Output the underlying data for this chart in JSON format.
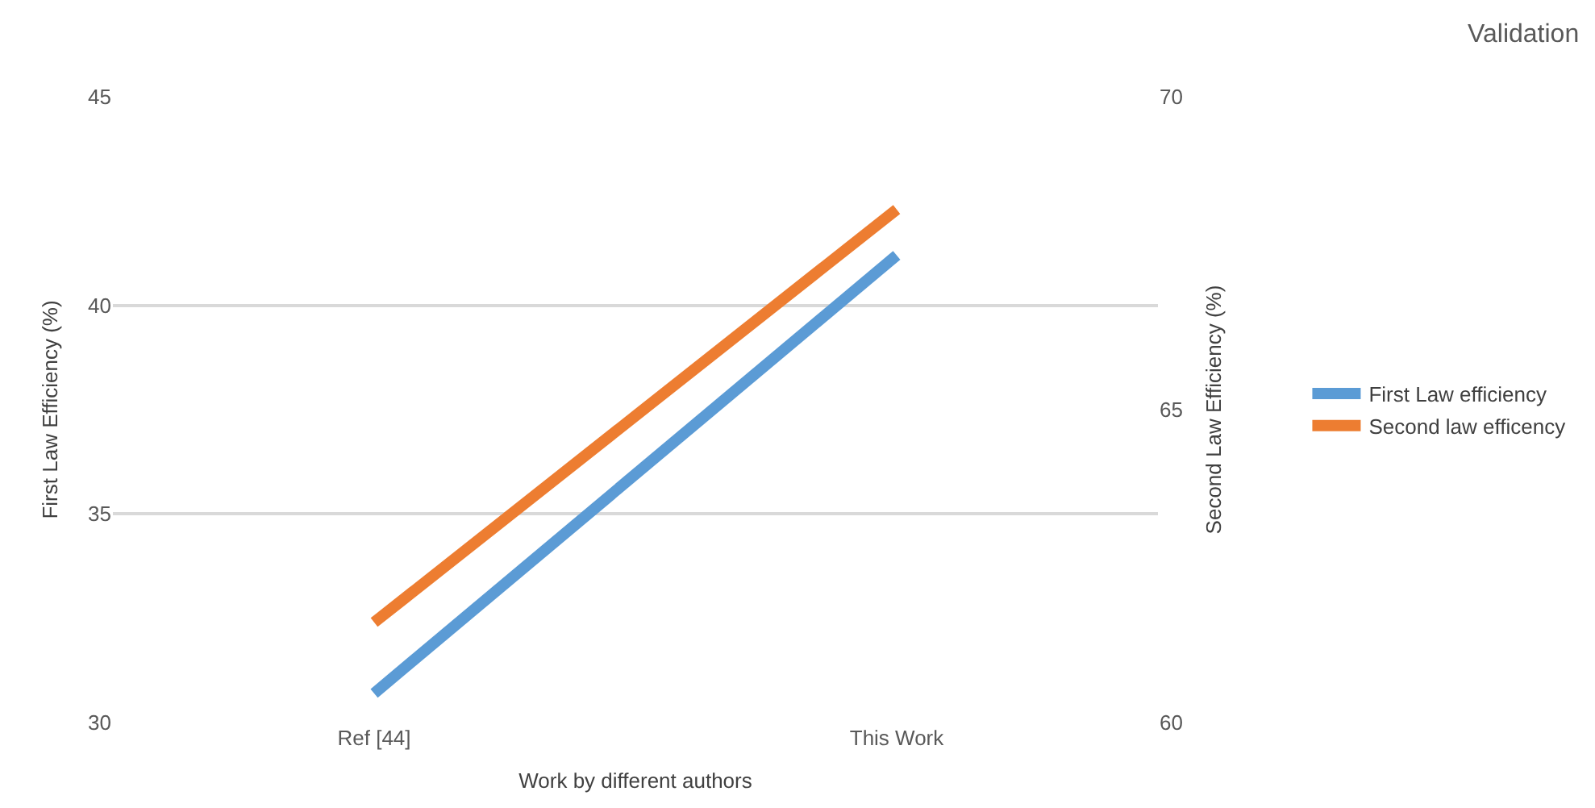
{
  "chart_data": {
    "type": "line",
    "title": "Validation",
    "xlabel": "Work by different authors",
    "ylabel": "First Law Efficiency (%)",
    "y2label": "Second Law Efficiency (%)",
    "categories": [
      "Ref [44]",
      "This Work"
    ],
    "series": [
      {
        "name": "First Law efficiency",
        "color": "#5b9bd5",
        "values": [
          30.7,
          41.2
        ]
      },
      {
        "name": "Second law efficency",
        "color": "#ed7d31",
        "values": [
          61.6,
          68.2
        ],
        "axis": "y2"
      }
    ],
    "ylim": [
      30,
      45
    ],
    "yticks": [
      30,
      35,
      40,
      45
    ],
    "y2lim": [
      60,
      70
    ],
    "y2ticks": [
      60,
      65,
      70
    ],
    "grid": "y",
    "legend": "right",
    "marker": "none",
    "line_style": "solid"
  }
}
